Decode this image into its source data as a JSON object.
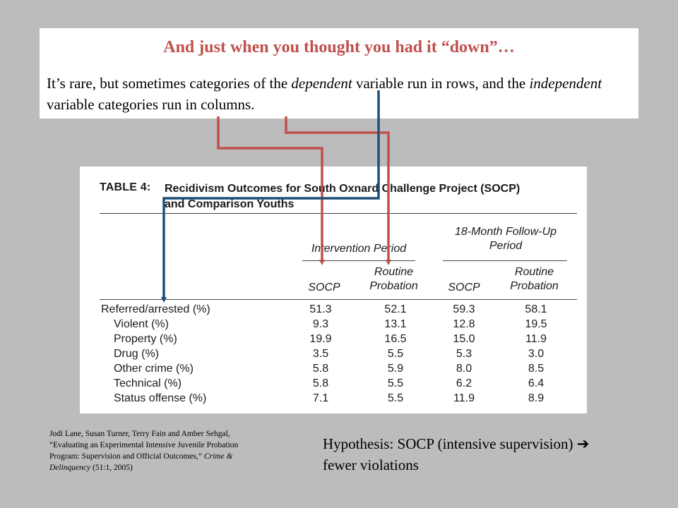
{
  "header": {
    "title": "And just when you thought you had it “down”…",
    "body_part1": "It’s rare, but sometimes categories of the ",
    "body_em1": "dependent",
    "body_part2": " variable run in rows, and the ",
    "body_em2": "independent",
    "body_part3": " variable categories run in columns."
  },
  "table": {
    "label": "TABLE 4:",
    "title_line1": "Recidivism Outcomes for South Oxnard Challenge Project (SOCP)",
    "title_line2": "and Comparison Youths",
    "groups": [
      "Intervention Period",
      "18-Month Follow-Up Period"
    ],
    "columns": [
      "SOCP",
      "Routine Probation",
      "SOCP",
      "Routine Probation"
    ],
    "rows": [
      {
        "label": "Referred/arrested (%)",
        "values": [
          "51.3",
          "52.1",
          "59.3",
          "58.1"
        ]
      },
      {
        "label": "Violent (%)",
        "values": [
          "9.3",
          "13.1",
          "12.8",
          "19.5"
        ]
      },
      {
        "label": "Property (%)",
        "values": [
          "19.9",
          "16.5",
          "15.0",
          "11.9"
        ]
      },
      {
        "label": "Drug (%)",
        "values": [
          "3.5",
          "5.5",
          "5.3",
          "3.0"
        ]
      },
      {
        "label": "Other crime (%)",
        "values": [
          "5.8",
          "5.9",
          "8.0",
          "8.5"
        ]
      },
      {
        "label": "Technical (%)",
        "values": [
          "5.8",
          "5.5",
          "6.2",
          "6.4"
        ]
      },
      {
        "label": "Status offense (%)",
        "values": [
          "7.1",
          "5.5",
          "11.9",
          "8.9"
        ]
      }
    ]
  },
  "citation": {
    "text": "Jodi Lane, Susan Turner, Terry Fain and Amber Sehgal, “Evaluating an Experimental Intensive Juvenile Probation Program: Supervision and Official Outcomes,”",
    "journal": "Crime & Delinquency",
    "tail": " (51:1, 2005)"
  },
  "hypothesis": {
    "text": "Hypothesis: SOCP (intensive supervision)",
    "arrow": "➔",
    "tail": " fewer violations"
  },
  "colors": {
    "background": "#bcbcbc",
    "title": "#c0504d",
    "red_arrow": "#c0504d",
    "blue_arrow": "#1f4e79"
  }
}
